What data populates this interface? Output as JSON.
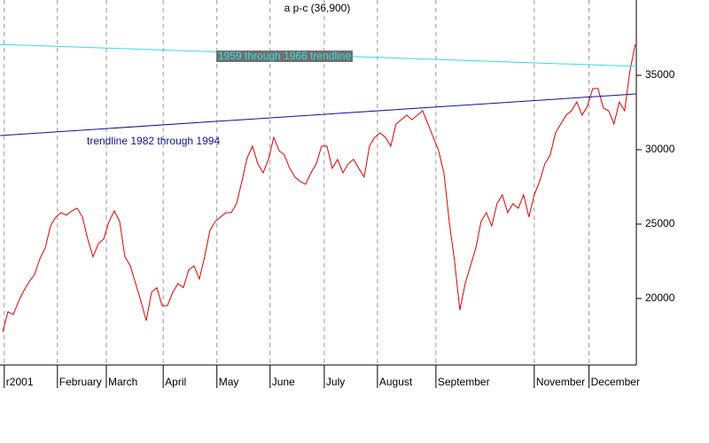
{
  "chart_data": {
    "type": "line",
    "title": "a p-c (36,900)",
    "xlim": [
      -0.5,
      119.2
    ],
    "ylim": [
      15530,
      40060
    ],
    "yticks": [
      20000,
      25000,
      30000,
      35000
    ],
    "xticks": [
      {
        "value": 0.3,
        "label": "r2001"
      },
      {
        "value": 10.3,
        "label": "February"
      },
      {
        "value": 19.5,
        "label": "March"
      },
      {
        "value": 30.2,
        "label": "April"
      },
      {
        "value": 40.3,
        "label": "May"
      },
      {
        "value": 50.3,
        "label": "June"
      },
      {
        "value": 60.5,
        "label": "July"
      },
      {
        "value": 70.5,
        "label": "August"
      },
      {
        "value": 81.5,
        "label": "September"
      },
      {
        "value": 100,
        "label": "November"
      },
      {
        "value": 110.3,
        "label": "December"
      }
    ],
    "grid": true,
    "series": [
      {
        "name": "a p-c",
        "color": "#e00000",
        "x": [
          0,
          1,
          2,
          3,
          4,
          5,
          6,
          7,
          8,
          9,
          10,
          11,
          12,
          13,
          14,
          15,
          16,
          17,
          18,
          19,
          20,
          21,
          22,
          23,
          24,
          25,
          26,
          27,
          28,
          29,
          30,
          31,
          32,
          33,
          34,
          35,
          36,
          37,
          38,
          39,
          40,
          41,
          42,
          43,
          44,
          45,
          46,
          47,
          48,
          49,
          50,
          51,
          52,
          53,
          54,
          55,
          56,
          57,
          58,
          59,
          60,
          61,
          62,
          63,
          64,
          65,
          66,
          67,
          68,
          69,
          70,
          71,
          72,
          73,
          74,
          75,
          76,
          77,
          78,
          79,
          80,
          81,
          82,
          83,
          84,
          85,
          86,
          87,
          88,
          89,
          90,
          91,
          92,
          93,
          94,
          95,
          96,
          97,
          98,
          99,
          100,
          101,
          102,
          103,
          104,
          105,
          106,
          107,
          108,
          109,
          110,
          111,
          112,
          113,
          114,
          115,
          116,
          117,
          118,
          119
        ],
        "values": [
          17740,
          19110,
          18930,
          19820,
          20540,
          21130,
          21610,
          22680,
          23390,
          24880,
          25480,
          25770,
          25600,
          25890,
          26070,
          25480,
          23990,
          22800,
          23690,
          23990,
          25180,
          25890,
          25180,
          22800,
          22200,
          21010,
          19820,
          18510,
          20420,
          20720,
          19520,
          19520,
          20420,
          21010,
          20720,
          21910,
          22200,
          21310,
          22800,
          24580,
          25180,
          25480,
          25770,
          25770,
          26370,
          27860,
          29460,
          30240,
          29050,
          28450,
          29350,
          30830,
          29940,
          29640,
          28750,
          28160,
          27860,
          27680,
          28450,
          29050,
          30240,
          30240,
          28750,
          29350,
          28450,
          29050,
          29350,
          28750,
          28160,
          30240,
          30830,
          31130,
          30830,
          30240,
          31730,
          32020,
          32320,
          32020,
          32320,
          32620,
          31730,
          30830,
          29940,
          28450,
          25180,
          22500,
          19230,
          21010,
          22200,
          23390,
          25180,
          25770,
          24880,
          26370,
          26970,
          25770,
          26370,
          26070,
          26970,
          25480,
          26970,
          27860,
          29050,
          29640,
          31130,
          31730,
          32320,
          32620,
          33210,
          32320,
          32920,
          34110,
          34110,
          32800,
          32620,
          31730,
          33210,
          32620,
          35300,
          37080
        ]
      },
      {
        "name": "1959 through 1966 trendline",
        "color": "#33dddd",
        "x": [
          -0.5,
          119.2
        ],
        "values": [
          37080,
          35600
        ]
      },
      {
        "name": "trendline 1982 through 1994",
        "color": "#1010a0",
        "x": [
          -0.5,
          119.2
        ],
        "values": [
          30950,
          33750
        ]
      }
    ]
  }
}
